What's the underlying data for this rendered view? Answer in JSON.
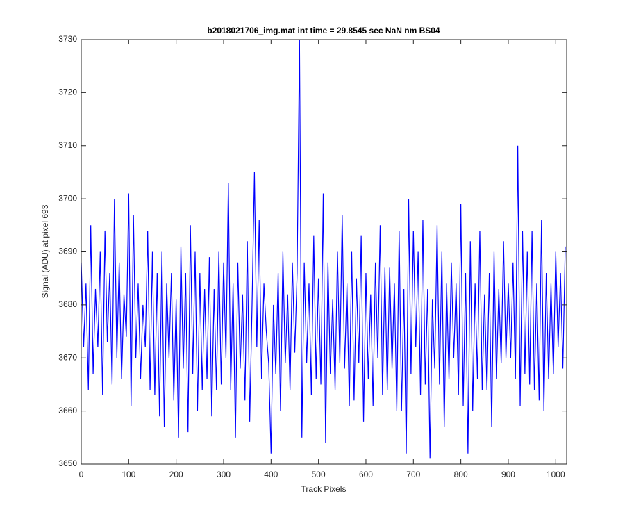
{
  "chart_data": {
    "type": "line",
    "title": "b2018021706_img.mat int time = 29.8545 sec  NaN nm BS04",
    "x_label": "Track Pixels",
    "y_label": "Signal (ADU) at pixel 693",
    "xlim": [
      0,
      1023
    ],
    "ylim": [
      3650,
      3730
    ],
    "xticks": [
      0,
      100,
      200,
      300,
      400,
      500,
      600,
      700,
      800,
      900,
      1000
    ],
    "yticks": [
      3650,
      3660,
      3670,
      3680,
      3690,
      3700,
      3710,
      3720,
      3730
    ],
    "x": [
      0,
      5,
      10,
      15,
      20,
      25,
      30,
      35,
      40,
      45,
      50,
      55,
      60,
      65,
      70,
      75,
      80,
      85,
      90,
      95,
      100,
      105,
      110,
      115,
      120,
      125,
      130,
      135,
      140,
      145,
      150,
      155,
      160,
      165,
      170,
      175,
      180,
      185,
      190,
      195,
      200,
      205,
      210,
      215,
      220,
      225,
      230,
      235,
      240,
      245,
      250,
      255,
      260,
      265,
      270,
      275,
      280,
      285,
      290,
      295,
      300,
      305,
      310,
      315,
      320,
      325,
      330,
      335,
      340,
      345,
      350,
      355,
      360,
      365,
      370,
      375,
      380,
      385,
      390,
      395,
      400,
      405,
      410,
      415,
      420,
      425,
      430,
      435,
      440,
      445,
      450,
      455,
      460,
      465,
      470,
      475,
      480,
      485,
      490,
      495,
      500,
      505,
      510,
      515,
      520,
      525,
      530,
      535,
      540,
      545,
      550,
      555,
      560,
      565,
      570,
      575,
      580,
      585,
      590,
      595,
      600,
      605,
      610,
      615,
      620,
      625,
      630,
      635,
      640,
      645,
      650,
      655,
      660,
      665,
      670,
      675,
      680,
      685,
      690,
      695,
      700,
      705,
      710,
      715,
      720,
      725,
      730,
      735,
      740,
      745,
      750,
      755,
      760,
      765,
      770,
      775,
      780,
      785,
      790,
      795,
      800,
      805,
      810,
      815,
      820,
      825,
      830,
      835,
      840,
      845,
      850,
      855,
      860,
      865,
      870,
      875,
      880,
      885,
      890,
      895,
      900,
      905,
      910,
      915,
      920,
      925,
      930,
      935,
      940,
      945,
      950,
      955,
      960,
      965,
      970,
      975,
      980,
      985,
      990,
      995,
      1000,
      1005,
      1010,
      1015,
      1020
    ],
    "series": [
      {
        "color": "#0000ff",
        "values": [
          3688,
          3672,
          3684,
          3664,
          3695,
          3667,
          3683,
          3672,
          3690,
          3663,
          3694,
          3673,
          3686,
          3665,
          3700,
          3670,
          3688,
          3666,
          3682,
          3674,
          3701,
          3661,
          3697,
          3670,
          3684,
          3666,
          3680,
          3672,
          3694,
          3664,
          3690,
          3663,
          3686,
          3659,
          3690,
          3657,
          3684,
          3670,
          3686,
          3662,
          3681,
          3655,
          3691,
          3668,
          3686,
          3656,
          3695,
          3667,
          3690,
          3660,
          3686,
          3664,
          3683,
          3666,
          3689,
          3659,
          3683,
          3664,
          3690,
          3665,
          3688,
          3670,
          3703,
          3664,
          3684,
          3655,
          3688,
          3668,
          3682,
          3662,
          3692,
          3658,
          3680,
          3705,
          3672,
          3696,
          3666,
          3684,
          3675,
          3669,
          3652,
          3680,
          3667,
          3686,
          3660,
          3690,
          3669,
          3682,
          3664,
          3688,
          3671,
          3686,
          3730,
          3655,
          3688,
          3669,
          3684,
          3663,
          3693,
          3666,
          3685,
          3665,
          3701,
          3654,
          3688,
          3667,
          3681,
          3664,
          3690,
          3669,
          3697,
          3668,
          3684,
          3661,
          3690,
          3662,
          3685,
          3669,
          3693,
          3658,
          3686,
          3666,
          3682,
          3661,
          3688,
          3670,
          3695,
          3663,
          3687,
          3664,
          3687,
          3668,
          3684,
          3660,
          3694,
          3660,
          3683,
          3652,
          3700,
          3667,
          3694,
          3672,
          3690,
          3663,
          3696,
          3665,
          3683,
          3651,
          3681,
          3668,
          3695,
          3665,
          3690,
          3657,
          3684,
          3666,
          3688,
          3670,
          3684,
          3663,
          3699,
          3661,
          3686,
          3652,
          3692,
          3660,
          3684,
          3666,
          3694,
          3664,
          3682,
          3664,
          3686,
          3657,
          3690,
          3666,
          3683,
          3669,
          3692,
          3670,
          3684,
          3670,
          3688,
          3666,
          3710,
          3661,
          3694,
          3667,
          3690,
          3665,
          3694,
          3664,
          3684,
          3662,
          3696,
          3660,
          3686,
          3666,
          3684,
          3667,
          3690,
          3672,
          3686,
          3668,
          3691
        ]
      }
    ]
  }
}
